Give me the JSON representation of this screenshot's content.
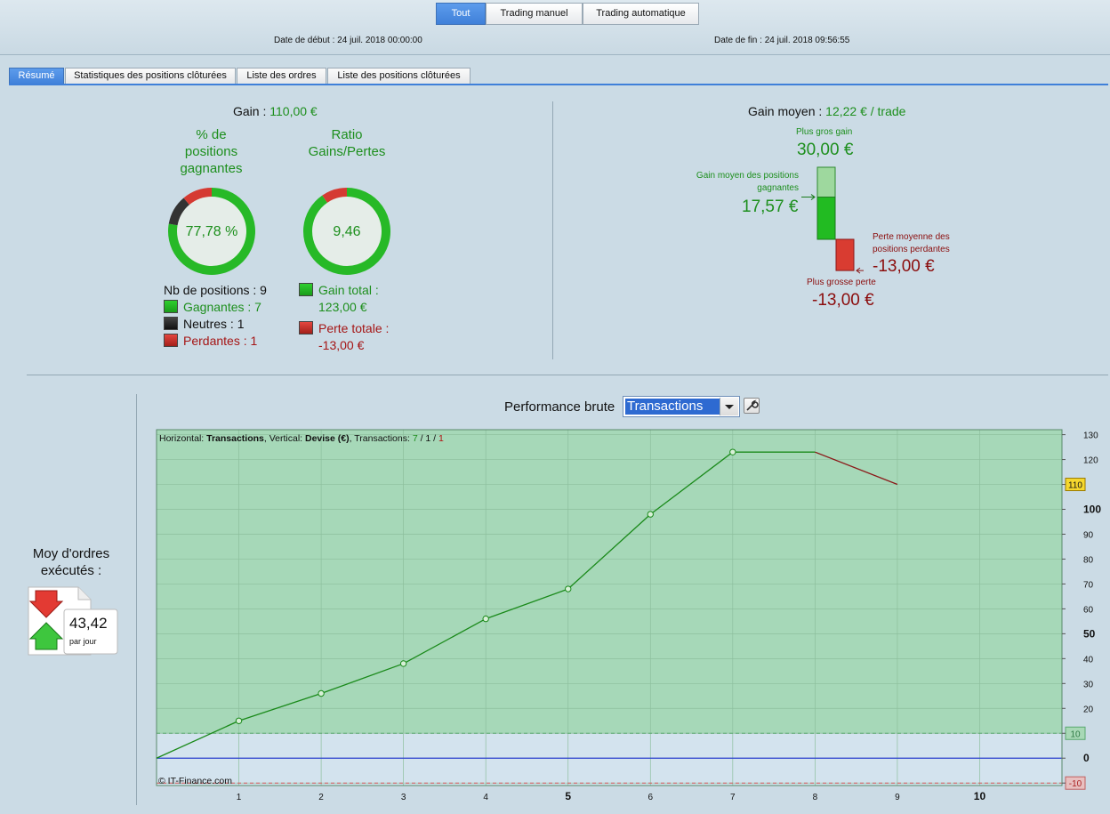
{
  "mode_tabs": [
    {
      "label": "Tout",
      "active": true
    },
    {
      "label": "Trading manuel",
      "active": false
    },
    {
      "label": "Trading automatique",
      "active": false
    }
  ],
  "dates": {
    "start_label": "Date de début :",
    "start_value": "24 juil. 2018 00:00:00",
    "end_label": "Date de fin :",
    "end_value": "24 juil. 2018 09:56:55"
  },
  "sub_tabs": [
    {
      "label": "Résumé",
      "active": true
    },
    {
      "label": "Statistiques des positions clôturées",
      "active": false
    },
    {
      "label": "Liste des ordres",
      "active": false
    },
    {
      "label": "Liste des positions clôturées",
      "active": false
    }
  ],
  "summary": {
    "gain_label": "Gain :",
    "gain_value": "110,00 €",
    "winpct_title": [
      "% de",
      "positions",
      "gagnantes"
    ],
    "winpct_value": "77,78 %",
    "ratio_title": [
      "Ratio",
      "Gains/Pertes"
    ],
    "ratio_value": "9,46",
    "positions_total_label": "Nb de positions : 9",
    "winners_label": "Gagnantes : 7",
    "neutral_label": "Neutres : 1",
    "losers_label": "Perdantes : 1",
    "total_gain_label": "Gain total :",
    "total_gain_value": "123,00 €",
    "total_loss_label": "Perte totale :",
    "total_loss_value": "-13,00 €",
    "donut_winpct": {
      "win": 7,
      "neutral": 1,
      "loss": 1
    },
    "donut_ratio": {
      "gain": 123,
      "loss": 13
    }
  },
  "average": {
    "label": "Gain moyen :",
    "value": "12,22 € / trade",
    "max_gain_label": "Plus gros gain",
    "max_gain_value": "30,00 €",
    "avg_win_label": [
      "Gain moyen des positions",
      "gagnantes"
    ],
    "avg_win_value": "17,57 €",
    "avg_loss_label": [
      "Perte moyenne des",
      "positions perdantes"
    ],
    "avg_loss_value": "-13,00 €",
    "max_loss_label": "Plus grosse perte",
    "max_loss_value": "-13,00 €",
    "max_gain": 30,
    "avg_win": 17.57,
    "avg_loss": -13,
    "max_loss": -13
  },
  "orders": {
    "title": [
      "Moy d'ordres",
      "exécutés :"
    ],
    "value": "43,42",
    "unit": "par jour"
  },
  "performance": {
    "title": "Performance brute",
    "select_value": "Transactions"
  },
  "chart_data": {
    "type": "line",
    "info": {
      "h_label": "Horizontal: ",
      "h_value": "Transactions",
      "v_label": ", Vertical: ",
      "v_value": "Devise (€)",
      "t_label": ", Transactions: ",
      "t_win": "7",
      "t_sep1": " / ",
      "t_neutral": "1",
      "t_sep2": " / ",
      "t_loss": "1"
    },
    "x": [
      0,
      1,
      2,
      3,
      4,
      5,
      6,
      7,
      8,
      9
    ],
    "y": [
      0,
      15,
      26,
      38,
      56,
      68,
      98,
      123,
      123,
      110
    ],
    "segment_colors": [
      "green",
      "green",
      "green",
      "green",
      "green",
      "green",
      "green",
      "neutral",
      "loss"
    ],
    "xlim": [
      0,
      11
    ],
    "ylim": [
      -11,
      132
    ],
    "x_ticks": [
      "1",
      "2",
      "3",
      "4",
      "5",
      "6",
      "7",
      "8",
      "9",
      "10"
    ],
    "x_bold_ticks": [
      "5",
      "10"
    ],
    "y_ticks": [
      "130",
      "120",
      "110",
      "100",
      "90",
      "80",
      "70",
      "60",
      "50",
      "40",
      "30",
      "20",
      "10",
      "0",
      "-10"
    ],
    "y_tick_values": [
      130,
      120,
      110,
      100,
      90,
      80,
      70,
      60,
      50,
      40,
      30,
      20,
      10,
      0,
      -10
    ],
    "y_bold_ticks": [
      "100",
      "50",
      "0"
    ],
    "highlight_labels": [
      {
        "value": 110,
        "text": "110",
        "style": "yellow"
      },
      {
        "value": 10,
        "text": "10",
        "style": "green"
      },
      {
        "value": -10,
        "text": "-10",
        "style": "red"
      }
    ],
    "green_zone_from": 10,
    "red_line": -10,
    "zero_line": 0,
    "grid": true,
    "watermark": "© IT-Finance.com",
    "colors": {
      "win": "#1a8a1a",
      "neutral": "#1a8a1a",
      "loss": "#8b1a1a",
      "zone": "#a6d8b8",
      "zero": "#2a3fd0"
    }
  }
}
